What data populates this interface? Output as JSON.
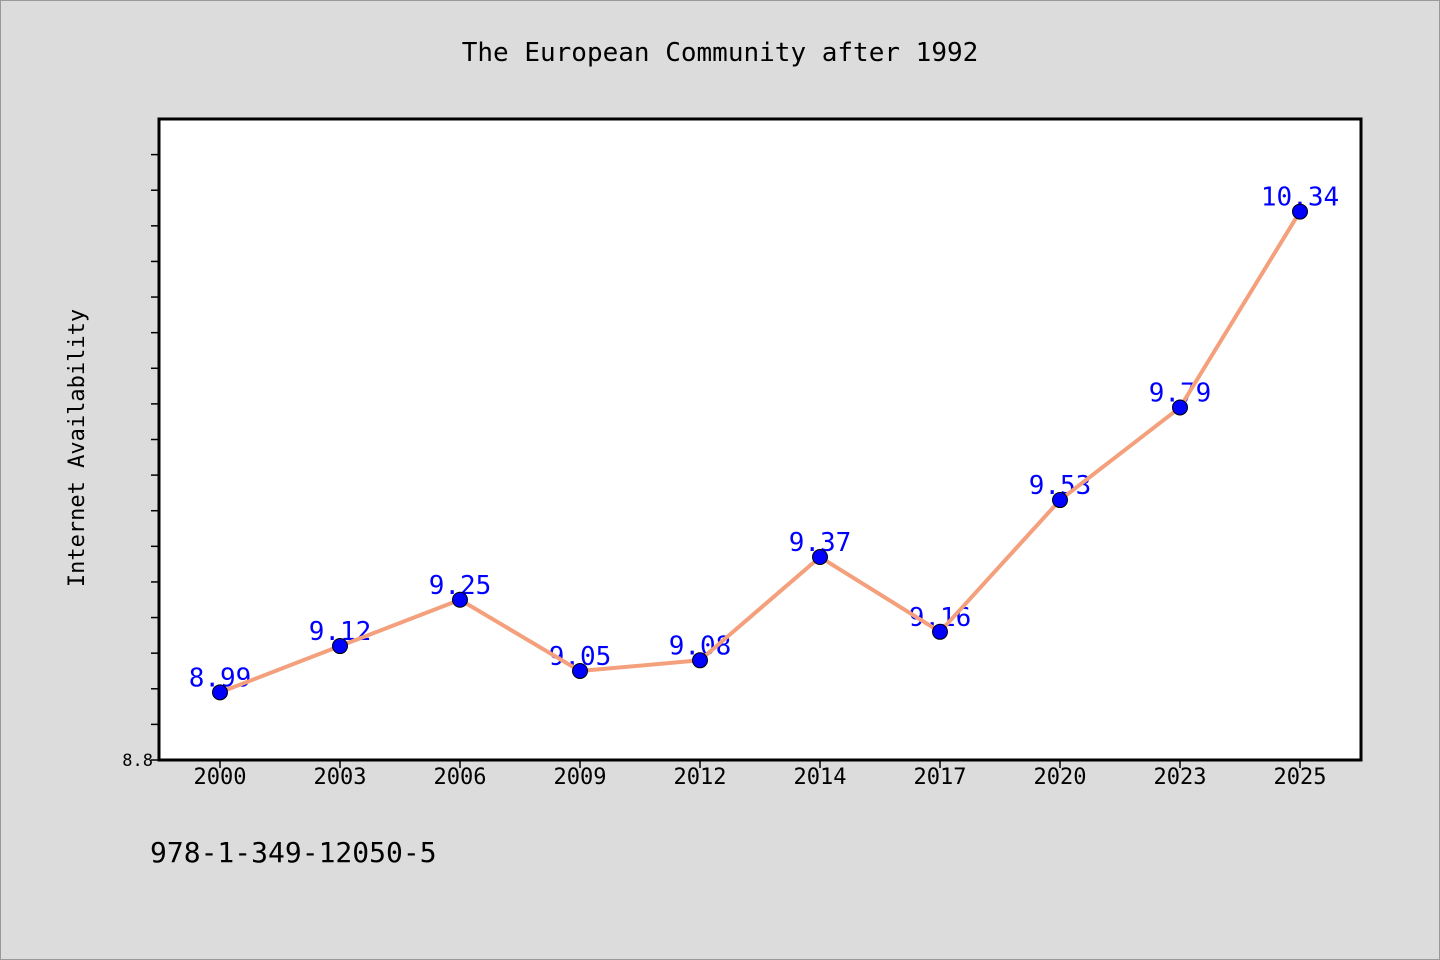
{
  "chart_data": {
    "type": "line",
    "title": "The European Community after 1992",
    "xlabel": "",
    "ylabel": "Internet Availability",
    "categories": [
      "2000",
      "2003",
      "2006",
      "2009",
      "2012",
      "2014",
      "2017",
      "2020",
      "2023",
      "2025"
    ],
    "series": [
      {
        "values": [
          8.99,
          9.12,
          9.25,
          9.05,
          9.08,
          9.37,
          9.16,
          9.53,
          9.79,
          10.34
        ]
      }
    ],
    "ylim": [
      8.8,
      10.6
    ],
    "y_tick_labels": [
      "8.8"
    ],
    "grid": false,
    "legend": "none",
    "line_color": "#f4a07c",
    "marker_color": "#0000ff",
    "label_color": "#0000ff",
    "plot_background": "#ffffff",
    "figure_background": "#dcdcdc"
  },
  "footer": {
    "isbn": "978-1-349-12050-5"
  }
}
